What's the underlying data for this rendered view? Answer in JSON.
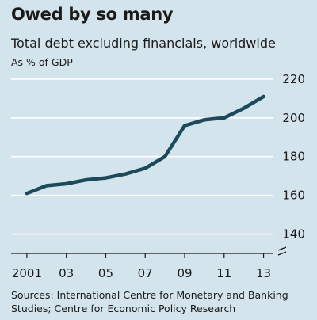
{
  "chart_data": {
    "type": "line",
    "title": "Owed by so many",
    "subtitle": "Total debt excluding financials, worldwide",
    "unit_label": "As % of GDP",
    "source": "Sources: International Centre for Monetary and Banking Studies; Centre for Economic Policy Research",
    "x": [
      2001,
      2002,
      2003,
      2004,
      2005,
      2006,
      2007,
      2008,
      2009,
      2010,
      2011,
      2012,
      2013
    ],
    "x_tick_values": [
      2001,
      2003,
      2005,
      2007,
      2009,
      2011,
      2013
    ],
    "x_tick_labels": [
      "2001",
      "03",
      "05",
      "07",
      "09",
      "11",
      "13"
    ],
    "series": [
      {
        "values": [
          161,
          165,
          166,
          168,
          169,
          171,
          174,
          180,
          196,
          199,
          200,
          205,
          211
        ],
        "color": "#1c4a5a"
      }
    ],
    "y_ticks": [
      140,
      160,
      180,
      200,
      220
    ],
    "ylim": [
      130,
      222
    ],
    "xlim": [
      2000.2,
      2013.5
    ],
    "y_axis_break": true,
    "grid": true,
    "y_axis_position": "right",
    "colors": {
      "background": "#d4e4ec",
      "grid": "#ffffff",
      "line": "#1c4a5a",
      "axis": "#1a1a1a"
    }
  }
}
